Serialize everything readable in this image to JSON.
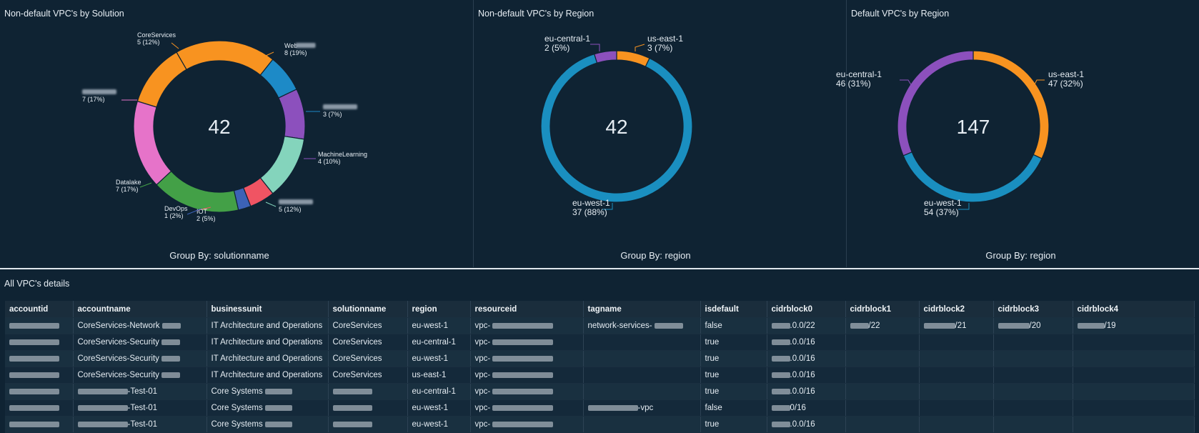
{
  "chart_data": [
    {
      "type": "donut",
      "title": "Non-default VPC's by Solution",
      "center_value": "42",
      "group_by": "Group By: solutionname",
      "slices": [
        {
          "name": "Web",
          "value": 8,
          "label": "8 (19%)",
          "color": "#f89320",
          "redacted": true
        },
        {
          "name": "",
          "value": 3,
          "label": "3 (7%)",
          "color": "#1d8ac7",
          "redacted": true
        },
        {
          "name": "MachineLearning",
          "value": 4,
          "label": "4 (10%)",
          "color": "#8c50bd",
          "redacted": false
        },
        {
          "name": "",
          "value": 5,
          "label": "5 (12%)",
          "color": "#84d4bc",
          "redacted": true
        },
        {
          "name": "IOT",
          "value": 2,
          "label": "2 (5%)",
          "color": "#f05463",
          "redacted": false
        },
        {
          "name": "DevOps",
          "value": 1,
          "label": "1 (2%)",
          "color": "#3c62b6",
          "redacted": false
        },
        {
          "name": "Datalake",
          "value": 7,
          "label": "7 (17%)",
          "color": "#43a047",
          "redacted": false
        },
        {
          "name": "",
          "value": 7,
          "label": "7 (17%)",
          "color": "#e673c9",
          "redacted": true
        },
        {
          "name": "CoreServices",
          "value": 5,
          "label": "5 (12%)",
          "color": "#f89320",
          "redacted": false
        }
      ]
    },
    {
      "type": "donut",
      "title": "Non-default VPC's by Region",
      "center_value": "42",
      "group_by": "Group By: region",
      "slices": [
        {
          "name": "us-east-1",
          "value": 3,
          "label": "3 (7%)",
          "color": "#f89320"
        },
        {
          "name": "eu-west-1",
          "value": 37,
          "label": "37 (88%)",
          "color": "#1a8fc0"
        },
        {
          "name": "eu-central-1",
          "value": 2,
          "label": "2 (5%)",
          "color": "#8c50bd"
        }
      ]
    },
    {
      "type": "donut",
      "title": "Default VPC's by Region",
      "center_value": "147",
      "group_by": "Group By: region",
      "slices": [
        {
          "name": "us-east-1",
          "value": 47,
          "label": "47 (32%)",
          "color": "#f89320"
        },
        {
          "name": "eu-west-1",
          "value": 54,
          "label": "54 (37%)",
          "color": "#1a8fc0"
        },
        {
          "name": "eu-central-1",
          "value": 46,
          "label": "46 (31%)",
          "color": "#8c50bd"
        }
      ]
    }
  ],
  "table": {
    "title": "All VPC's details",
    "columns": [
      "accountid",
      "accountname",
      "businessunit",
      "solutionname",
      "region",
      "resourceid",
      "tagname",
      "isdefault",
      "cidrblock0",
      "cidrblock1",
      "cidrblock2",
      "cidrblock3",
      "cidrblock4"
    ],
    "rows": [
      [
        "",
        "CoreServices-Network",
        "IT Architecture and Operations",
        "CoreServices",
        "eu-west-1",
        "vpc-",
        "network-services-",
        "false",
        ".0.0/22",
        "/22",
        "/21",
        "/20",
        "/19"
      ],
      [
        "",
        "CoreServices-Security",
        "IT Architecture and Operations",
        "CoreServices",
        "eu-central-1",
        "vpc-",
        "",
        "true",
        ".0.0/16",
        "",
        "",
        "",
        ""
      ],
      [
        "",
        "CoreServices-Security",
        "IT Architecture and Operations",
        "CoreServices",
        "eu-west-1",
        "vpc-",
        "",
        "true",
        ".0.0/16",
        "",
        "",
        "",
        ""
      ],
      [
        "",
        "CoreServices-Security",
        "IT Architecture and Operations",
        "CoreServices",
        "us-east-1",
        "vpc-",
        "",
        "true",
        ".0.0/16",
        "",
        "",
        "",
        ""
      ],
      [
        "",
        "-Test-01",
        "Core Systems",
        "",
        "eu-central-1",
        "vpc-",
        "",
        "true",
        ".0.0/16",
        "",
        "",
        "",
        ""
      ],
      [
        "",
        "-Test-01",
        "Core Systems",
        "",
        "eu-west-1",
        "vpc-",
        "-vpc",
        "false",
        "0/16",
        "",
        "",
        "",
        ""
      ],
      [
        "",
        "-Test-01",
        "Core Systems",
        "",
        "eu-west-1",
        "vpc-",
        "",
        "true",
        ".0.0/16",
        "",
        "",
        "",
        ""
      ]
    ]
  }
}
